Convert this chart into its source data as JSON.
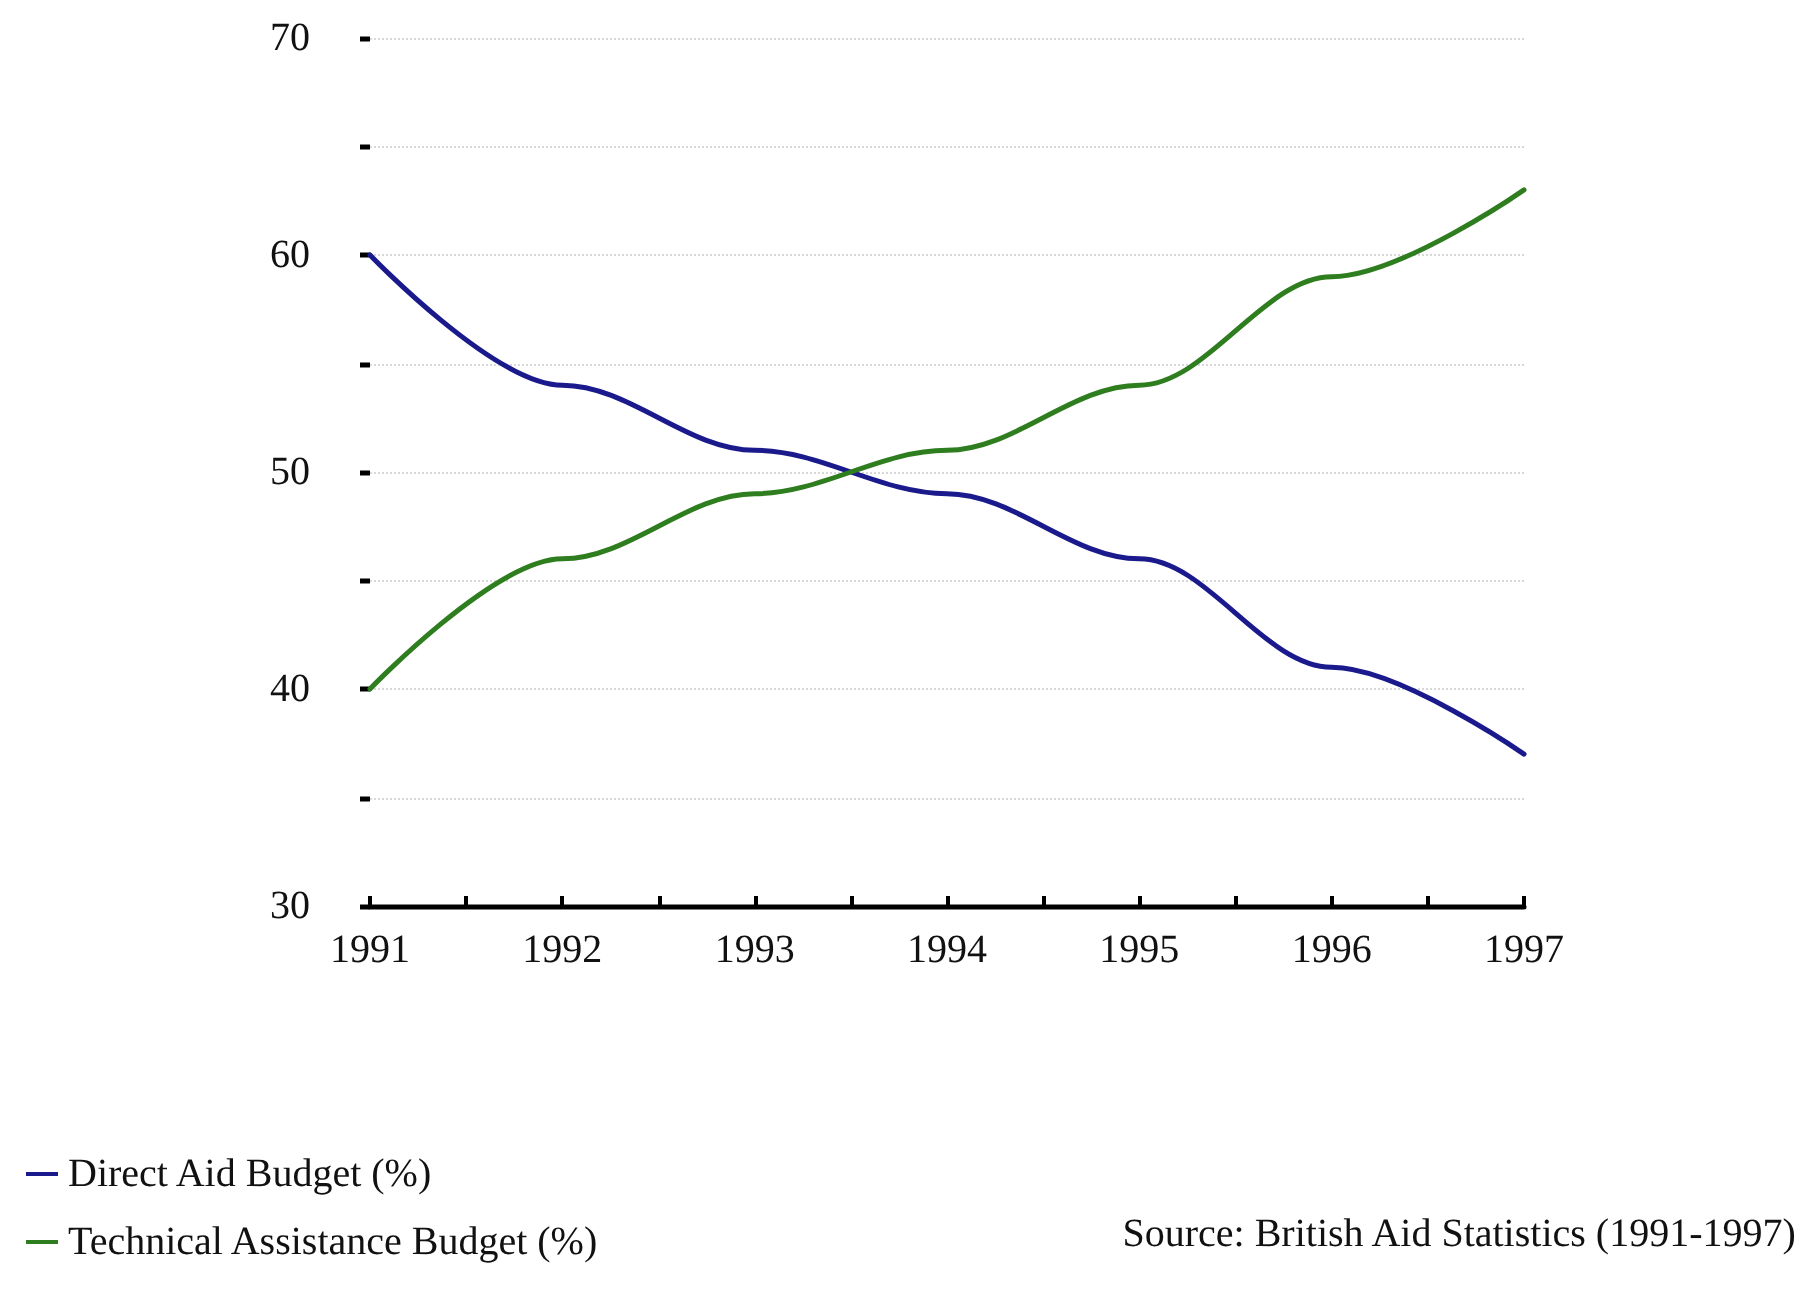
{
  "chart_data": {
    "type": "line",
    "x": [
      1991,
      1992,
      1993,
      1994,
      1995,
      1996,
      1997
    ],
    "series": [
      {
        "name": "Direct Aid Budget (%)",
        "color": "#1a1a8c",
        "values": [
          60,
          54,
          51,
          49,
          46,
          41,
          37
        ]
      },
      {
        "name": "Technical Assistance Budget (%)",
        "color": "#2e7d1e",
        "values": [
          40,
          46,
          49,
          51,
          54,
          59,
          63
        ]
      }
    ],
    "xlim": [
      1991,
      1997
    ],
    "xticks": [
      1991,
      {
        "value": 1991.5,
        "label": null
      },
      1992,
      {
        "value": 1992.5,
        "label": null
      },
      1993,
      {
        "value": 1993.5,
        "label": null
      },
      1994,
      {
        "value": 1994.5,
        "label": null
      },
      1995,
      {
        "value": 1995.5,
        "label": null
      },
      1996,
      {
        "value": 1996.5,
        "label": null
      },
      1997
    ],
    "ylim": [
      30,
      70
    ],
    "yticks": [
      30,
      {
        "value": 35,
        "label": null
      },
      40,
      {
        "value": 45,
        "label": null
      },
      50,
      {
        "value": 55,
        "label": null
      },
      60,
      {
        "value": 65,
        "label": null
      },
      70
    ],
    "grid": "y",
    "legend": "bottom left",
    "marker": "none",
    "line_style": "solid",
    "annotations": [
      "Source: British Aid Statistics (1991-1997)"
    ]
  }
}
